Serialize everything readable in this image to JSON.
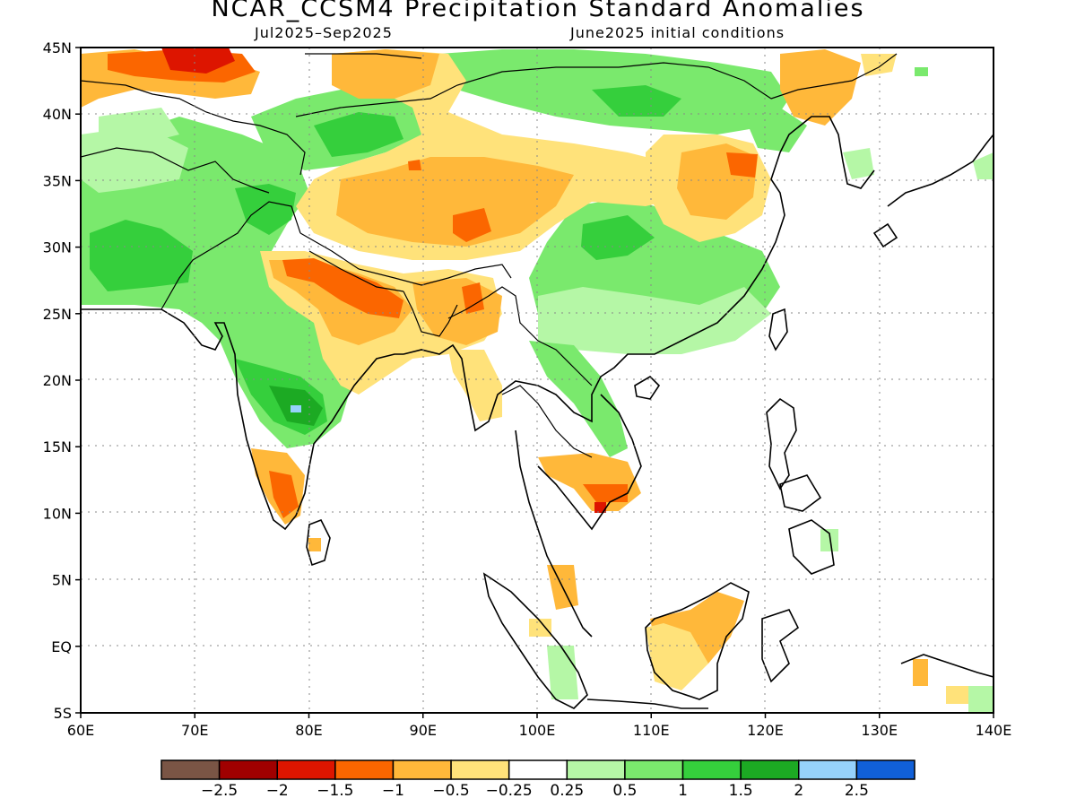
{
  "title": "NCAR_CCSM4 Precipitation Standard Anomalies",
  "subtitle_left": "Jul2025–Sep2025",
  "subtitle_right": "June2025 initial conditions",
  "axes": {
    "lat_ticks": [
      "45N",
      "40N",
      "35N",
      "30N",
      "25N",
      "20N",
      "15N",
      "10N",
      "5N",
      "EQ",
      "5S"
    ],
    "lon_ticks": [
      "60E",
      "70E",
      "80E",
      "90E",
      "100E",
      "110E",
      "120E",
      "130E",
      "140E"
    ]
  },
  "colorbar": {
    "colors": [
      "#7a5545",
      "#a00000",
      "#dd1500",
      "#fb6600",
      "#ffb83a",
      "#ffe27a",
      "#ffffff",
      "#b5f7a6",
      "#7ae96d",
      "#35cf3c",
      "#1caa23",
      "#96d2fb",
      "#1160d8"
    ],
    "labels": [
      "−2.5",
      "−2",
      "−1.5",
      "−1",
      "−0.5",
      "−0.25",
      "0.25",
      "0.5",
      "1",
      "1.5",
      "2",
      "2.5"
    ]
  },
  "map_colors": {
    "dry_strong": "#dd1500",
    "dry_moderate": "#fb6600",
    "dry": "#ffb83a",
    "dry_light": "#ffe27a",
    "wet_light": "#b5f7a6",
    "wet": "#7ae96d",
    "wet_moderate": "#35cf3c",
    "wet_strong": "#1caa23",
    "wet_very": "#96d2fb"
  }
}
